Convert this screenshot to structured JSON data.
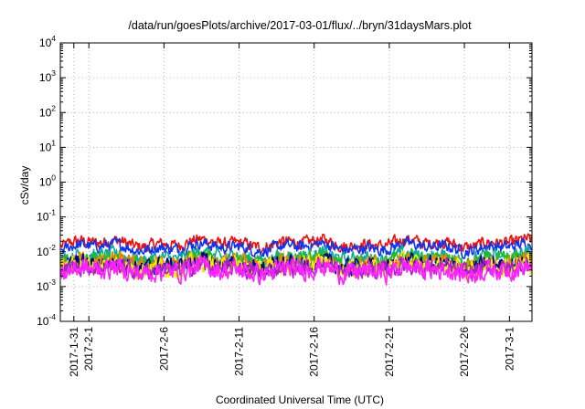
{
  "chart_data": {
    "type": "line",
    "title": "/data/run/goesPlots/archive/2017-03-01/flux/../bryn/31daysMars.plot",
    "xlabel": "Coordinated Universal Time (UTC)",
    "ylabel": "cSv/day",
    "yscale": "log",
    "ylim": [
      0.0001,
      10000
    ],
    "xlim_days": [
      -0.9,
      30.5
    ],
    "grid": true,
    "y_ticks": [
      {
        "exp": "-4",
        "value": 0.0001
      },
      {
        "exp": "-3",
        "value": 0.001
      },
      {
        "exp": "-2",
        "value": 0.01
      },
      {
        "exp": "-1",
        "value": 0.1
      },
      {
        "exp": "0",
        "value": 1
      },
      {
        "exp": "1",
        "value": 10
      },
      {
        "exp": "2",
        "value": 100
      },
      {
        "exp": "3",
        "value": 1000
      },
      {
        "exp": "4",
        "value": 10000
      }
    ],
    "y_tick_base": "10",
    "x_ticks": [
      {
        "label": "2017-1-31",
        "day": 0
      },
      {
        "label": "2017-2-1",
        "day": 1
      },
      {
        "label": "2017-2-6",
        "day": 6
      },
      {
        "label": "2017-2-11",
        "day": 11
      },
      {
        "label": "2017-2-16",
        "day": 16
      },
      {
        "label": "2017-2-21",
        "day": 21
      },
      {
        "label": "2017-2-26",
        "day": 26
      },
      {
        "label": "2017-3-1",
        "day": 29
      }
    ],
    "series": [
      {
        "name": "series-red",
        "color": "#ee1111",
        "base": 0.0175,
        "noise": 0.13
      },
      {
        "name": "series-blue",
        "color": "#1133ee",
        "base": 0.0135,
        "noise": 0.13
      },
      {
        "name": "series-teal",
        "color": "#11aa99",
        "base": 0.007,
        "noise": 0.16
      },
      {
        "name": "series-green",
        "color": "#22bb22",
        "base": 0.0055,
        "noise": 0.17
      },
      {
        "name": "series-orange",
        "color": "#ee8800",
        "base": 0.0047,
        "noise": 0.18
      },
      {
        "name": "series-navy",
        "color": "#000088",
        "base": 0.0042,
        "noise": 0.18
      },
      {
        "name": "series-yellow",
        "color": "#eeee00",
        "base": 0.0038,
        "noise": 0.2
      },
      {
        "name": "series-purple",
        "color": "#aa22cc",
        "base": 0.0033,
        "noise": 0.2
      },
      {
        "name": "series-magenta",
        "color": "#ff22ff",
        "base": 0.0029,
        "noise": 0.22
      }
    ]
  }
}
